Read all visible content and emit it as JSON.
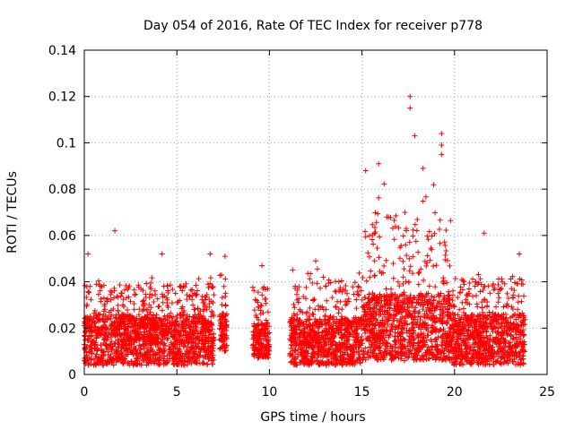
{
  "chart_data": {
    "type": "scatter",
    "title": "Day 054 of 2016, Rate Of TEC Index for receiver p778",
    "xlabel": "GPS time / hours",
    "ylabel": "ROTI / TECUs",
    "xlim": [
      0,
      25
    ],
    "ylim": [
      0,
      0.14
    ],
    "xticks": [
      0,
      5,
      10,
      15,
      20,
      25
    ],
    "xtick_labels": [
      "0",
      "5",
      "10",
      "15",
      "20",
      "25"
    ],
    "yticks": [
      0,
      0.02,
      0.04,
      0.06,
      0.08,
      0.1,
      0.12,
      0.14
    ],
    "ytick_labels": [
      "0",
      "0.02",
      "0.04",
      "0.06",
      "0.08",
      "0.1",
      "0.12",
      "0.14"
    ],
    "grid": true,
    "marker": "+",
    "color": "#ff0000",
    "series": [
      {
        "name": "ROTI",
        "notable_points": [
          {
            "x": 1.65,
            "y": 0.062
          },
          {
            "x": 0.2,
            "y": 0.052
          },
          {
            "x": 4.2,
            "y": 0.052
          },
          {
            "x": 6.8,
            "y": 0.052
          },
          {
            "x": 7.6,
            "y": 0.051
          },
          {
            "x": 9.6,
            "y": 0.047
          },
          {
            "x": 12.5,
            "y": 0.049
          },
          {
            "x": 15.2,
            "y": 0.088
          },
          {
            "x": 15.9,
            "y": 0.091
          },
          {
            "x": 17.6,
            "y": 0.12
          },
          {
            "x": 17.6,
            "y": 0.115
          },
          {
            "x": 17.85,
            "y": 0.103
          },
          {
            "x": 18.3,
            "y": 0.089
          },
          {
            "x": 19.3,
            "y": 0.104
          },
          {
            "x": 19.3,
            "y": 0.099
          },
          {
            "x": 19.3,
            "y": 0.095
          },
          {
            "x": 21.6,
            "y": 0.061
          },
          {
            "x": 23.5,
            "y": 0.052
          }
        ],
        "segments": [
          {
            "x_start": 0.0,
            "x_end": 7.0,
            "base_min": 0.004,
            "base_max": 0.026,
            "peak": 0.045
          },
          {
            "x_start": 7.3,
            "x_end": 7.7,
            "base_min": 0.01,
            "base_max": 0.028,
            "peak": 0.05
          },
          {
            "x_start": 9.1,
            "x_end": 10.0,
            "base_min": 0.007,
            "base_max": 0.022,
            "peak": 0.045
          },
          {
            "x_start": 11.1,
            "x_end": 15.0,
            "base_min": 0.004,
            "base_max": 0.024,
            "peak": 0.048
          },
          {
            "x_start": 15.0,
            "x_end": 19.8,
            "base_min": 0.006,
            "base_max": 0.035,
            "peak": 0.085
          },
          {
            "x_start": 19.8,
            "x_end": 23.8,
            "base_min": 0.004,
            "base_max": 0.026,
            "peak": 0.048
          }
        ]
      }
    ]
  }
}
